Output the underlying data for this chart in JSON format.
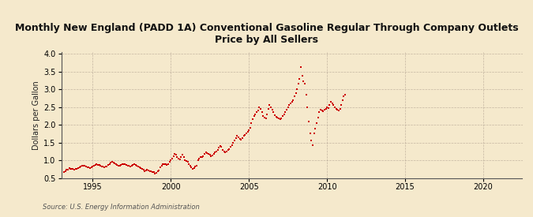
{
  "title": "Monthly New England (PADD 1A) Conventional Gasoline Regular Through Company Outlets\nPrice by All Sellers",
  "ylabel": "Dollars per Gallon",
  "source": "Source: U.S. Energy Information Administration",
  "background_color": "#f5e9cc",
  "plot_bg": "#f5e9cc",
  "dot_color": "#cc0000",
  "xlim": [
    1993.0,
    2022.5
  ],
  "ylim": [
    0.5,
    4.05
  ],
  "yticks": [
    0.5,
    1.0,
    1.5,
    2.0,
    2.5,
    3.0,
    3.5,
    4.0
  ],
  "xticks": [
    1995,
    2000,
    2005,
    2010,
    2015,
    2020
  ],
  "data": [
    [
      1993.17,
      0.67
    ],
    [
      1993.25,
      0.7
    ],
    [
      1993.33,
      0.73
    ],
    [
      1993.42,
      0.74
    ],
    [
      1993.5,
      0.77
    ],
    [
      1993.58,
      0.76
    ],
    [
      1993.67,
      0.75
    ],
    [
      1993.75,
      0.76
    ],
    [
      1993.83,
      0.74
    ],
    [
      1993.92,
      0.75
    ],
    [
      1994.0,
      0.76
    ],
    [
      1994.08,
      0.78
    ],
    [
      1994.17,
      0.8
    ],
    [
      1994.25,
      0.82
    ],
    [
      1994.33,
      0.84
    ],
    [
      1994.42,
      0.85
    ],
    [
      1994.5,
      0.84
    ],
    [
      1994.58,
      0.83
    ],
    [
      1994.67,
      0.8
    ],
    [
      1994.75,
      0.79
    ],
    [
      1994.83,
      0.78
    ],
    [
      1994.92,
      0.8
    ],
    [
      1995.0,
      0.82
    ],
    [
      1995.08,
      0.85
    ],
    [
      1995.17,
      0.87
    ],
    [
      1995.25,
      0.88
    ],
    [
      1995.33,
      0.87
    ],
    [
      1995.42,
      0.86
    ],
    [
      1995.5,
      0.85
    ],
    [
      1995.58,
      0.83
    ],
    [
      1995.67,
      0.82
    ],
    [
      1995.75,
      0.8
    ],
    [
      1995.83,
      0.82
    ],
    [
      1995.92,
      0.83
    ],
    [
      1996.0,
      0.87
    ],
    [
      1996.08,
      0.9
    ],
    [
      1996.17,
      0.93
    ],
    [
      1996.25,
      0.95
    ],
    [
      1996.33,
      0.94
    ],
    [
      1996.42,
      0.92
    ],
    [
      1996.5,
      0.88
    ],
    [
      1996.58,
      0.87
    ],
    [
      1996.67,
      0.85
    ],
    [
      1996.75,
      0.84
    ],
    [
      1996.83,
      0.87
    ],
    [
      1996.92,
      0.9
    ],
    [
      1997.0,
      0.89
    ],
    [
      1997.08,
      0.88
    ],
    [
      1997.17,
      0.86
    ],
    [
      1997.25,
      0.85
    ],
    [
      1997.33,
      0.84
    ],
    [
      1997.42,
      0.83
    ],
    [
      1997.5,
      0.84
    ],
    [
      1997.58,
      0.86
    ],
    [
      1997.67,
      0.88
    ],
    [
      1997.75,
      0.87
    ],
    [
      1997.83,
      0.85
    ],
    [
      1997.92,
      0.83
    ],
    [
      1998.0,
      0.8
    ],
    [
      1998.08,
      0.78
    ],
    [
      1998.17,
      0.75
    ],
    [
      1998.25,
      0.73
    ],
    [
      1998.33,
      0.7
    ],
    [
      1998.42,
      0.72
    ],
    [
      1998.5,
      0.73
    ],
    [
      1998.58,
      0.72
    ],
    [
      1998.67,
      0.7
    ],
    [
      1998.75,
      0.69
    ],
    [
      1998.83,
      0.67
    ],
    [
      1998.92,
      0.66
    ],
    [
      1999.0,
      0.63
    ],
    [
      1999.08,
      0.65
    ],
    [
      1999.17,
      0.68
    ],
    [
      1999.25,
      0.72
    ],
    [
      1999.33,
      0.8
    ],
    [
      1999.42,
      0.85
    ],
    [
      1999.5,
      0.88
    ],
    [
      1999.58,
      0.9
    ],
    [
      1999.67,
      0.88
    ],
    [
      1999.75,
      0.87
    ],
    [
      1999.83,
      0.9
    ],
    [
      1999.92,
      0.95
    ],
    [
      2000.0,
      1.0
    ],
    [
      2000.08,
      1.05
    ],
    [
      2000.17,
      1.12
    ],
    [
      2000.25,
      1.18
    ],
    [
      2000.33,
      1.15
    ],
    [
      2000.42,
      1.08
    ],
    [
      2000.5,
      1.05
    ],
    [
      2000.58,
      1.02
    ],
    [
      2000.67,
      1.1
    ],
    [
      2000.75,
      1.15
    ],
    [
      2000.83,
      1.08
    ],
    [
      2000.92,
      1.0
    ],
    [
      2001.0,
      0.98
    ],
    [
      2001.08,
      0.95
    ],
    [
      2001.17,
      0.9
    ],
    [
      2001.25,
      0.85
    ],
    [
      2001.33,
      0.8
    ],
    [
      2001.42,
      0.75
    ],
    [
      2001.5,
      0.78
    ],
    [
      2001.58,
      0.82
    ],
    [
      2001.67,
      0.85
    ],
    [
      2001.75,
      1.0
    ],
    [
      2001.83,
      1.05
    ],
    [
      2001.92,
      1.1
    ],
    [
      2002.0,
      1.08
    ],
    [
      2002.08,
      1.12
    ],
    [
      2002.17,
      1.18
    ],
    [
      2002.25,
      1.22
    ],
    [
      2002.33,
      1.2
    ],
    [
      2002.42,
      1.18
    ],
    [
      2002.5,
      1.15
    ],
    [
      2002.58,
      1.12
    ],
    [
      2002.67,
      1.14
    ],
    [
      2002.75,
      1.18
    ],
    [
      2002.83,
      1.22
    ],
    [
      2002.92,
      1.25
    ],
    [
      2003.0,
      1.28
    ],
    [
      2003.08,
      1.35
    ],
    [
      2003.17,
      1.4
    ],
    [
      2003.25,
      1.38
    ],
    [
      2003.33,
      1.3
    ],
    [
      2003.42,
      1.25
    ],
    [
      2003.5,
      1.22
    ],
    [
      2003.58,
      1.24
    ],
    [
      2003.67,
      1.28
    ],
    [
      2003.75,
      1.32
    ],
    [
      2003.83,
      1.38
    ],
    [
      2003.92,
      1.42
    ],
    [
      2004.0,
      1.48
    ],
    [
      2004.08,
      1.55
    ],
    [
      2004.17,
      1.62
    ],
    [
      2004.25,
      1.68
    ],
    [
      2004.33,
      1.65
    ],
    [
      2004.42,
      1.6
    ],
    [
      2004.5,
      1.58
    ],
    [
      2004.58,
      1.62
    ],
    [
      2004.67,
      1.68
    ],
    [
      2004.75,
      1.72
    ],
    [
      2004.83,
      1.75
    ],
    [
      2004.92,
      1.8
    ],
    [
      2005.0,
      1.85
    ],
    [
      2005.08,
      1.92
    ],
    [
      2005.17,
      2.05
    ],
    [
      2005.25,
      2.15
    ],
    [
      2005.33,
      2.25
    ],
    [
      2005.42,
      2.3
    ],
    [
      2005.5,
      2.35
    ],
    [
      2005.58,
      2.4
    ],
    [
      2005.67,
      2.5
    ],
    [
      2005.75,
      2.45
    ],
    [
      2005.83,
      2.35
    ],
    [
      2005.92,
      2.25
    ],
    [
      2006.0,
      2.2
    ],
    [
      2006.08,
      2.18
    ],
    [
      2006.17,
      2.3
    ],
    [
      2006.25,
      2.45
    ],
    [
      2006.33,
      2.55
    ],
    [
      2006.42,
      2.5
    ],
    [
      2006.5,
      2.42
    ],
    [
      2006.58,
      2.35
    ],
    [
      2006.67,
      2.28
    ],
    [
      2006.75,
      2.22
    ],
    [
      2006.83,
      2.2
    ],
    [
      2006.92,
      2.18
    ],
    [
      2007.0,
      2.15
    ],
    [
      2007.08,
      2.18
    ],
    [
      2007.17,
      2.25
    ],
    [
      2007.25,
      2.3
    ],
    [
      2007.33,
      2.35
    ],
    [
      2007.42,
      2.42
    ],
    [
      2007.5,
      2.5
    ],
    [
      2007.58,
      2.55
    ],
    [
      2007.67,
      2.6
    ],
    [
      2007.75,
      2.65
    ],
    [
      2007.83,
      2.7
    ],
    [
      2007.92,
      2.8
    ],
    [
      2008.0,
      2.9
    ],
    [
      2008.08,
      3.0
    ],
    [
      2008.17,
      3.15
    ],
    [
      2008.25,
      3.3
    ],
    [
      2008.33,
      3.62
    ],
    [
      2008.42,
      3.38
    ],
    [
      2008.5,
      3.22
    ],
    [
      2008.58,
      3.15
    ],
    [
      2008.67,
      2.85
    ],
    [
      2008.75,
      2.5
    ],
    [
      2008.83,
      2.1
    ],
    [
      2008.92,
      1.75
    ],
    [
      2009.0,
      1.55
    ],
    [
      2009.08,
      1.42
    ],
    [
      2009.17,
      1.75
    ],
    [
      2009.25,
      1.9
    ],
    [
      2009.33,
      2.05
    ],
    [
      2009.42,
      2.2
    ],
    [
      2009.5,
      2.35
    ],
    [
      2009.58,
      2.42
    ],
    [
      2009.67,
      2.4
    ],
    [
      2009.75,
      2.38
    ],
    [
      2009.83,
      2.42
    ],
    [
      2009.92,
      2.45
    ],
    [
      2010.0,
      2.5
    ],
    [
      2010.08,
      2.48
    ],
    [
      2010.17,
      2.55
    ],
    [
      2010.25,
      2.65
    ],
    [
      2010.33,
      2.6
    ],
    [
      2010.42,
      2.55
    ],
    [
      2010.5,
      2.5
    ],
    [
      2010.58,
      2.45
    ],
    [
      2010.67,
      2.42
    ],
    [
      2010.75,
      2.4
    ],
    [
      2010.83,
      2.45
    ],
    [
      2010.92,
      2.55
    ],
    [
      2011.0,
      2.7
    ],
    [
      2011.08,
      2.8
    ],
    [
      2011.17,
      2.85
    ]
  ]
}
